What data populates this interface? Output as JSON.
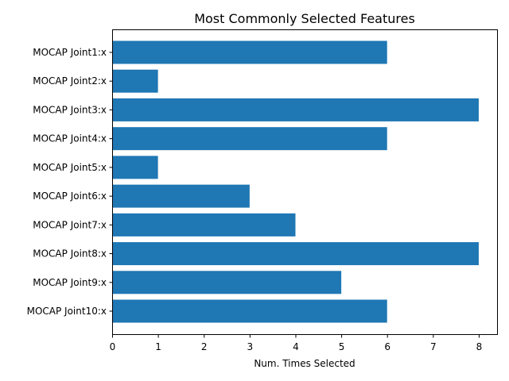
{
  "chart_data": {
    "type": "bar",
    "orientation": "horizontal",
    "title": "Most Commonly Selected Features",
    "xlabel": "Num. Times Selected",
    "ylabel": "",
    "xlim": [
      0,
      8.4
    ],
    "xticks": [
      0,
      1,
      2,
      3,
      4,
      5,
      6,
      7,
      8
    ],
    "grid": false,
    "bar_color": "#1f77b4",
    "categories": [
      "MOCAP Joint1:x",
      "MOCAP Joint2:x",
      "MOCAP Joint3:x",
      "MOCAP Joint4:x",
      "MOCAP Joint5:x",
      "MOCAP Joint6:x",
      "MOCAP Joint7:x",
      "MOCAP Joint8:x",
      "MOCAP Joint9:x",
      "MOCAP Joint10:x"
    ],
    "values": [
      6,
      1,
      8,
      6,
      1,
      3,
      4,
      8,
      5,
      6
    ]
  }
}
